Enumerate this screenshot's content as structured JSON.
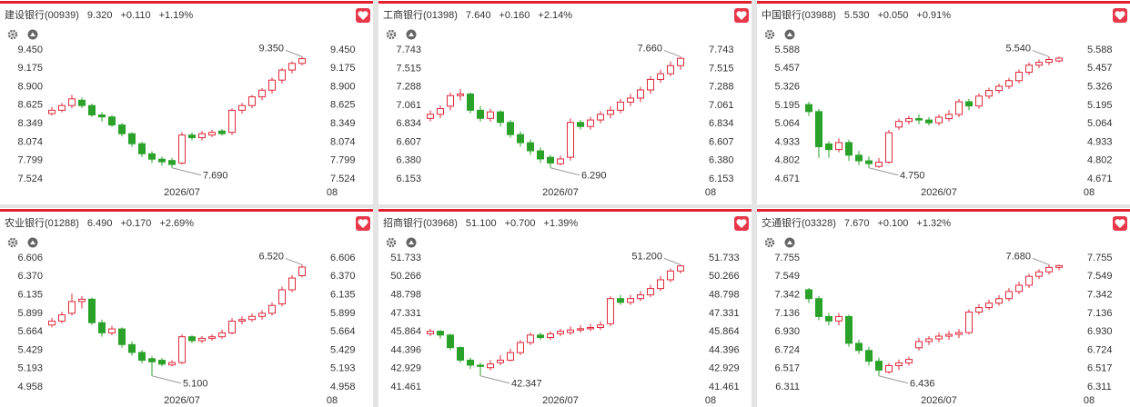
{
  "chart_data": [
    {
      "type": "candlestick",
      "title": "建设银行(00939)",
      "price": "9.320",
      "change": "+0.110",
      "change_pct": "+1.19%",
      "up_color": "#e0283a",
      "down_color": "#2aa22a",
      "categories": [
        null,
        null,
        null,
        null,
        null,
        null,
        null,
        null,
        null,
        null,
        null,
        null,
        null,
        "2026/07",
        null,
        null,
        null,
        null,
        null,
        null,
        null,
        null,
        null,
        null,
        null,
        null,
        null,
        null,
        "08"
      ],
      "open": [
        8.5,
        8.55,
        8.62,
        8.7,
        8.62,
        8.48,
        8.45,
        8.33,
        8.2,
        8.05,
        7.9,
        7.82,
        7.8,
        7.76,
        8.18,
        8.14,
        8.18,
        8.24,
        8.22,
        8.55,
        8.62,
        8.75,
        8.85,
        9.0,
        9.15,
        9.25,
        null,
        null,
        null
      ],
      "high": [
        8.6,
        8.66,
        8.78,
        8.74,
        8.65,
        8.52,
        8.48,
        8.36,
        8.22,
        8.08,
        7.94,
        7.86,
        7.84,
        8.22,
        8.22,
        8.24,
        8.26,
        8.27,
        8.58,
        8.66,
        8.78,
        8.88,
        9.04,
        9.18,
        9.28,
        9.35,
        null,
        null,
        null
      ],
      "low": [
        8.47,
        8.52,
        8.58,
        8.58,
        8.45,
        8.38,
        8.3,
        8.16,
        8.0,
        7.85,
        7.76,
        7.72,
        7.69,
        7.74,
        8.1,
        8.1,
        8.15,
        8.17,
        8.18,
        8.5,
        8.58,
        8.7,
        8.8,
        8.95,
        9.1,
        9.22,
        null,
        null,
        null
      ],
      "close": [
        8.55,
        8.62,
        8.72,
        8.62,
        8.48,
        8.45,
        8.33,
        8.2,
        8.05,
        7.9,
        7.82,
        7.78,
        7.74,
        8.18,
        8.14,
        8.2,
        8.22,
        8.2,
        8.55,
        8.62,
        8.75,
        8.85,
        9.0,
        9.15,
        9.25,
        9.32,
        null,
        null,
        null
      ],
      "ylim": [
        7.524,
        9.45
      ],
      "yticks": [
        {
          "value": 9.45,
          "label": "9.450"
        },
        9.175,
        {
          "value": 8.9,
          "label": "8.900"
        },
        8.625,
        8.349,
        8.074,
        7.799,
        7.524
      ],
      "max_label": {
        "value": 9.35,
        "label": "9.350"
      },
      "min_label": {
        "value": 7.69,
        "label": "7.690"
      }
    },
    {
      "type": "candlestick",
      "title": "工商银行(01398)",
      "price": "7.640",
      "change": "+0.160",
      "change_pct": "+2.14%",
      "up_color": "#e0283a",
      "down_color": "#2aa22a",
      "categories": [
        null,
        null,
        null,
        null,
        null,
        null,
        null,
        null,
        null,
        null,
        null,
        null,
        null,
        "2026/07",
        null,
        null,
        null,
        null,
        null,
        null,
        null,
        null,
        null,
        null,
        null,
        null,
        null,
        null,
        "08"
      ],
      "open": [
        6.9,
        6.95,
        7.05,
        7.18,
        7.2,
        7.0,
        6.9,
        6.98,
        6.85,
        6.7,
        6.6,
        6.5,
        6.42,
        6.34,
        6.42,
        6.85,
        6.8,
        6.88,
        6.95,
        7.0,
        7.1,
        7.15,
        7.25,
        7.38,
        7.45,
        7.55,
        null,
        null,
        null
      ],
      "high": [
        7.0,
        7.06,
        7.22,
        7.26,
        7.22,
        7.05,
        7.02,
        7.0,
        6.88,
        6.74,
        6.64,
        6.54,
        6.45,
        6.44,
        6.9,
        6.88,
        6.92,
        6.99,
        7.05,
        7.14,
        7.2,
        7.29,
        7.42,
        7.5,
        7.6,
        7.66,
        null,
        null,
        null
      ],
      "low": [
        6.86,
        6.9,
        7.0,
        7.12,
        6.96,
        6.86,
        6.86,
        6.8,
        6.66,
        6.55,
        6.45,
        6.35,
        6.29,
        6.32,
        6.38,
        6.76,
        6.76,
        6.84,
        6.9,
        6.96,
        7.05,
        7.1,
        7.2,
        7.34,
        7.42,
        7.5,
        null,
        null,
        null
      ],
      "close": [
        6.95,
        7.02,
        7.18,
        7.2,
        7.0,
        6.9,
        6.98,
        6.85,
        6.7,
        6.6,
        6.5,
        6.4,
        6.35,
        6.4,
        6.85,
        6.8,
        6.88,
        6.95,
        7.0,
        7.1,
        7.15,
        7.25,
        7.38,
        7.45,
        7.55,
        7.64,
        null,
        null,
        null
      ],
      "ylim": [
        6.153,
        7.743
      ],
      "yticks": [
        7.743,
        7.515,
        7.288,
        7.061,
        6.834,
        6.607,
        {
          "value": 6.38,
          "label": "6.380"
        },
        6.153
      ],
      "max_label": {
        "value": 7.66,
        "label": "7.660"
      },
      "min_label": {
        "value": 6.29,
        "label": "6.290"
      }
    },
    {
      "type": "candlestick",
      "title": "中国银行(03988)",
      "price": "5.530",
      "change": "+0.050",
      "change_pct": "+0.91%",
      "up_color": "#e0283a",
      "down_color": "#2aa22a",
      "categories": [
        null,
        null,
        null,
        null,
        null,
        null,
        null,
        null,
        null,
        null,
        null,
        null,
        null,
        "2026/07",
        null,
        null,
        null,
        null,
        null,
        null,
        null,
        null,
        null,
        null,
        null,
        null,
        null,
        null,
        "08"
      ],
      "open": [
        5.2,
        5.15,
        4.92,
        4.88,
        4.93,
        4.84,
        4.8,
        4.76,
        4.79,
        5.04,
        5.08,
        5.1,
        5.09,
        5.07,
        5.1,
        5.13,
        5.22,
        5.19,
        5.26,
        5.3,
        5.33,
        5.37,
        5.43,
        5.48,
        5.5,
        5.51,
        null,
        null,
        null
      ],
      "high": [
        5.22,
        5.17,
        4.94,
        4.96,
        4.95,
        4.87,
        4.83,
        4.82,
        5.02,
        5.1,
        5.12,
        5.13,
        5.11,
        5.13,
        5.16,
        5.24,
        5.24,
        5.28,
        5.32,
        5.35,
        5.39,
        5.45,
        5.5,
        5.52,
        5.54,
        5.54,
        null,
        null,
        null
      ],
      "low": [
        5.12,
        4.82,
        4.82,
        4.86,
        4.8,
        4.77,
        4.75,
        4.75,
        4.78,
        5.02,
        5.06,
        5.06,
        5.05,
        5.05,
        5.08,
        5.11,
        5.16,
        5.17,
        5.24,
        5.28,
        5.31,
        5.35,
        5.41,
        5.46,
        5.48,
        5.5,
        null,
        null,
        null
      ],
      "close": [
        5.15,
        4.9,
        4.88,
        4.93,
        4.84,
        4.8,
        4.78,
        4.79,
        5.0,
        5.08,
        5.1,
        5.09,
        5.07,
        5.11,
        5.13,
        5.22,
        5.19,
        5.26,
        5.3,
        5.33,
        5.37,
        5.43,
        5.48,
        5.5,
        5.52,
        5.53,
        null,
        null,
        null
      ],
      "ylim": [
        4.671,
        5.588
      ],
      "yticks": [
        5.588,
        5.457,
        5.326,
        5.195,
        5.064,
        4.933,
        4.802,
        4.671
      ],
      "max_label": {
        "value": 5.54,
        "label": "5.540"
      },
      "min_label": {
        "value": 4.75,
        "label": "4.750"
      }
    },
    {
      "type": "candlestick",
      "title": "农业银行(01288)",
      "price": "6.490",
      "change": "+0.170",
      "change_pct": "+2.69%",
      "up_color": "#e0283a",
      "down_color": "#2aa22a",
      "categories": [
        null,
        null,
        null,
        null,
        null,
        null,
        null,
        null,
        null,
        null,
        null,
        null,
        null,
        "2026/07",
        null,
        null,
        null,
        null,
        null,
        null,
        null,
        null,
        null,
        null,
        null,
        null,
        null,
        null,
        "08"
      ],
      "open": [
        5.75,
        5.8,
        5.9,
        6.05,
        6.08,
        5.78,
        5.65,
        5.7,
        5.5,
        5.4,
        5.32,
        5.3,
        5.24,
        5.27,
        5.6,
        5.55,
        5.58,
        5.6,
        5.65,
        5.8,
        5.82,
        5.86,
        5.9,
        6.02,
        6.2,
        6.38,
        null,
        null,
        null
      ],
      "high": [
        5.84,
        5.92,
        6.15,
        6.12,
        6.1,
        5.82,
        5.74,
        5.72,
        5.54,
        5.43,
        5.35,
        5.33,
        5.3,
        5.63,
        5.62,
        5.61,
        5.63,
        5.69,
        5.84,
        5.86,
        5.9,
        5.94,
        6.04,
        6.24,
        6.39,
        6.52,
        null,
        null,
        null
      ],
      "low": [
        5.72,
        5.77,
        5.87,
        5.96,
        5.75,
        5.6,
        5.62,
        5.46,
        5.36,
        5.26,
        5.1,
        5.22,
        5.22,
        5.25,
        5.52,
        5.52,
        5.55,
        5.57,
        5.63,
        5.76,
        5.79,
        5.82,
        5.87,
        5.99,
        6.17,
        6.36,
        null,
        null,
        null
      ],
      "close": [
        5.8,
        5.88,
        6.05,
        6.08,
        5.78,
        5.65,
        5.7,
        5.5,
        5.4,
        5.3,
        5.28,
        5.25,
        5.27,
        5.6,
        5.55,
        5.58,
        5.6,
        5.65,
        5.8,
        5.82,
        5.86,
        5.9,
        6.0,
        6.2,
        6.35,
        6.49,
        null,
        null,
        null
      ],
      "ylim": [
        4.958,
        6.606
      ],
      "yticks": [
        6.606,
        {
          "value": 6.37,
          "label": "6.370"
        },
        6.135,
        5.899,
        5.664,
        5.429,
        5.193,
        4.958
      ],
      "max_label": {
        "value": 6.52,
        "label": "6.520"
      },
      "min_label": {
        "value": 5.1,
        "label": "5.100"
      }
    },
    {
      "type": "candlestick",
      "title": "招商银行(03968)",
      "price": "51.100",
      "change": "+0.700",
      "change_pct": "+1.39%",
      "up_color": "#e0283a",
      "down_color": "#2aa22a",
      "categories": [
        null,
        null,
        null,
        null,
        null,
        null,
        null,
        null,
        null,
        null,
        null,
        null,
        null,
        "2026/07",
        null,
        null,
        null,
        null,
        null,
        null,
        null,
        null,
        null,
        null,
        null,
        null,
        null,
        null,
        "08"
      ],
      "open": [
        45.7,
        45.9,
        45.6,
        44.6,
        43.6,
        43.2,
        43.0,
        43.4,
        43.6,
        44.2,
        45.0,
        45.6,
        45.4,
        45.7,
        45.8,
        46.0,
        46.1,
        46.2,
        46.5,
        48.5,
        48.2,
        48.5,
        48.8,
        49.3,
        50.0,
        50.7,
        null,
        null,
        null
      ],
      "high": [
        46.1,
        46.0,
        45.7,
        44.7,
        43.8,
        43.4,
        43.6,
        44.0,
        44.5,
        45.2,
        45.8,
        45.8,
        45.9,
        46.1,
        46.3,
        46.4,
        46.5,
        46.7,
        48.7,
        48.8,
        48.8,
        49.1,
        49.6,
        50.3,
        50.9,
        51.2,
        null,
        null,
        null
      ],
      "low": [
        45.5,
        45.3,
        44.4,
        43.4,
        42.9,
        42.347,
        42.8,
        43.2,
        43.5,
        44.0,
        44.8,
        45.2,
        45.2,
        45.5,
        45.6,
        45.8,
        45.9,
        46.0,
        46.3,
        48.0,
        48.0,
        48.3,
        48.6,
        49.1,
        49.8,
        50.5,
        null,
        null,
        null
      ],
      "close": [
        45.9,
        45.6,
        44.6,
        43.6,
        43.2,
        43.1,
        43.3,
        43.6,
        44.2,
        45.0,
        45.6,
        45.4,
        45.7,
        45.9,
        46.0,
        46.1,
        46.2,
        46.4,
        48.5,
        48.2,
        48.5,
        48.8,
        49.3,
        50.0,
        50.7,
        51.1,
        null,
        null,
        null
      ],
      "ylim": [
        41.461,
        51.733
      ],
      "yticks": [
        51.733,
        50.266,
        48.798,
        47.331,
        45.864,
        44.396,
        42.929,
        41.461
      ],
      "max_label": {
        "value": 51.2,
        "label": "51.200"
      },
      "min_label": {
        "value": 42.347,
        "label": "42.347"
      }
    },
    {
      "type": "candlestick",
      "title": "交通银行(03328)",
      "price": "7.670",
      "change": "+0.100",
      "change_pct": "+1.32%",
      "up_color": "#e0283a",
      "down_color": "#2aa22a",
      "categories": [
        null,
        null,
        null,
        null,
        null,
        null,
        null,
        null,
        null,
        null,
        null,
        null,
        null,
        "2026/07",
        null,
        null,
        null,
        null,
        null,
        null,
        null,
        null,
        null,
        null,
        null,
        null,
        null,
        null,
        "08"
      ],
      "open": [
        7.4,
        7.3,
        7.1,
        7.05,
        7.1,
        6.8,
        6.72,
        6.6,
        6.48,
        6.55,
        6.58,
        6.75,
        6.82,
        6.85,
        6.88,
        6.9,
        6.92,
        7.15,
        7.2,
        7.25,
        7.3,
        7.38,
        7.45,
        7.55,
        7.6,
        7.65,
        null,
        null,
        null
      ],
      "high": [
        7.42,
        7.33,
        7.14,
        7.14,
        7.12,
        6.84,
        6.76,
        6.64,
        6.58,
        6.62,
        6.65,
        6.86,
        6.88,
        6.92,
        6.94,
        6.96,
        7.18,
        7.24,
        7.29,
        7.34,
        7.42,
        7.49,
        7.58,
        7.63,
        7.68,
        7.68,
        null,
        null,
        null
      ],
      "low": [
        7.25,
        7.06,
        7.0,
        7.0,
        6.76,
        6.68,
        6.55,
        6.436,
        6.46,
        6.5,
        6.55,
        6.72,
        6.78,
        6.81,
        6.84,
        6.86,
        6.9,
        7.12,
        7.17,
        7.22,
        7.27,
        7.35,
        7.42,
        7.52,
        7.57,
        7.62,
        null,
        null,
        null
      ],
      "close": [
        7.3,
        7.1,
        7.05,
        7.1,
        6.8,
        6.72,
        6.6,
        6.5,
        6.55,
        6.58,
        6.62,
        6.82,
        6.85,
        6.88,
        6.9,
        6.92,
        7.15,
        7.2,
        7.25,
        7.3,
        7.38,
        7.45,
        7.55,
        7.6,
        7.65,
        7.67,
        null,
        null,
        null
      ],
      "ylim": [
        6.311,
        7.755
      ],
      "yticks": [
        7.755,
        7.549,
        7.342,
        7.136,
        {
          "value": 6.93,
          "label": "6.930"
        },
        6.724,
        6.517,
        6.311
      ],
      "max_label": {
        "value": 7.68,
        "label": "7.680"
      },
      "min_label": {
        "value": 6.436,
        "label": "6.436"
      }
    }
  ]
}
